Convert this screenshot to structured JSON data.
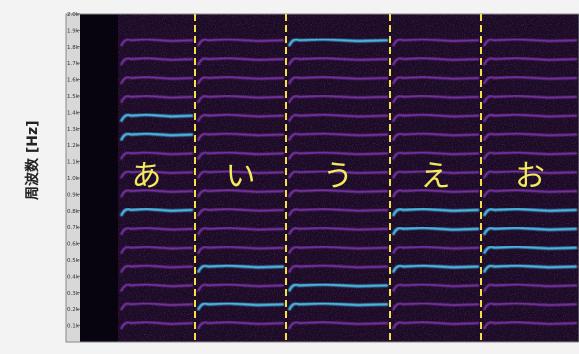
{
  "chart_data": {
    "type": "heatmap",
    "title": "",
    "xlabel": "",
    "ylabel": "周波数 [Hz]",
    "ylim": [
      0,
      2000
    ],
    "y_ticks": [
      "2.0k",
      "1.9k",
      "1.8k",
      "1.7k",
      "1.6k",
      "1.5k",
      "1.4k",
      "1.3k",
      "1.2k",
      "1.1k",
      "1.0k",
      "0.9k",
      "0.8k",
      "0.7k",
      "0.6k",
      "0.5k",
      "0.4k",
      "0.3k",
      "0.2k",
      "0.1k"
    ],
    "y_tick_values": [
      2000,
      1900,
      1800,
      1700,
      1600,
      1500,
      1400,
      1300,
      1200,
      1100,
      1000,
      900,
      800,
      700,
      600,
      500,
      400,
      300,
      200,
      100
    ],
    "segments": [
      {
        "label": "あ",
        "f0": 115,
        "formants": [
          800,
          1350
        ]
      },
      {
        "label": "い",
        "f0": 115,
        "formants": [
          250,
          450
        ]
      },
      {
        "label": "う",
        "f0": 115,
        "formants": [
          300,
          1850
        ]
      },
      {
        "label": "え",
        "f0": 115,
        "formants": [
          450,
          720
        ]
      },
      {
        "label": "お",
        "f0": 115,
        "formants": [
          500,
          750
        ]
      }
    ],
    "colors": {
      "background": "#1a0a24",
      "harmonic": "#9a3fd1",
      "formant": "#4fd0ff",
      "divider": "#f5e04a",
      "label": "#f3ea5c"
    }
  }
}
